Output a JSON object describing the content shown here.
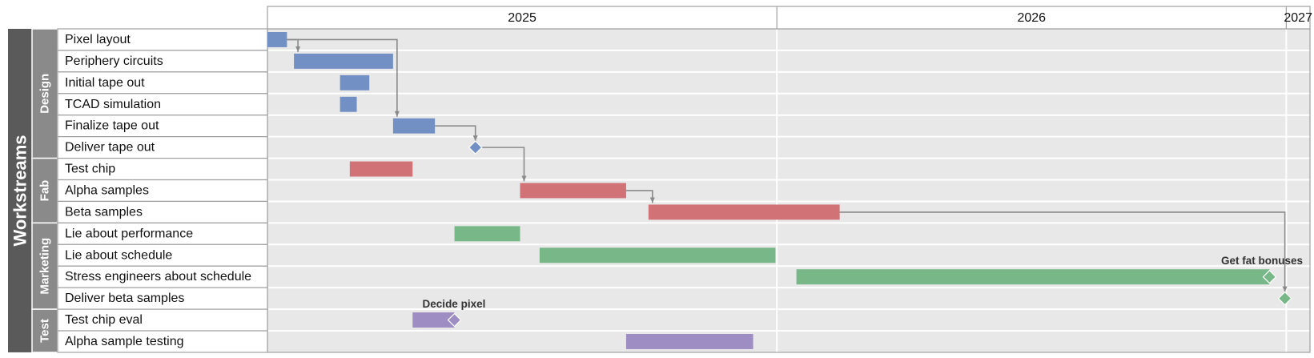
{
  "chart_data": {
    "type": "gantt",
    "outer_label": "Workstreams",
    "years": [
      "2025",
      "2026",
      "2027"
    ],
    "x_range": [
      "2025-01-01",
      "2027-01-18"
    ],
    "groups": [
      {
        "name": "Design",
        "color": "#7390c4",
        "rows": [
          0,
          5
        ]
      },
      {
        "name": "Fab",
        "color": "#d07276",
        "rows": [
          6,
          8
        ]
      },
      {
        "name": "Marketing",
        "color": "#78b888",
        "rows": [
          9,
          12
        ]
      },
      {
        "name": "Test",
        "color": "#9e8dc2",
        "rows": [
          13,
          14
        ]
      }
    ],
    "tasks": [
      {
        "name": "Pixel layout",
        "group": "Design",
        "start": "2025-01-01",
        "end": "2025-01-15"
      },
      {
        "name": "Periphery circuits",
        "group": "Design",
        "start": "2025-01-20",
        "end": "2025-04-01"
      },
      {
        "name": "Initial tape out",
        "group": "Design",
        "start": "2025-02-22",
        "end": "2025-03-15"
      },
      {
        "name": "TCAD simulation",
        "group": "Design",
        "start": "2025-02-22",
        "end": "2025-03-06"
      },
      {
        "name": "Finalize tape out",
        "group": "Design",
        "start": "2025-04-01",
        "end": "2025-05-01"
      },
      {
        "name": "Deliver tape out",
        "group": "Design",
        "milestone": "2025-05-30"
      },
      {
        "name": "Test chip",
        "group": "Fab",
        "start": "2025-03-01",
        "end": "2025-04-15"
      },
      {
        "name": "Alpha samples",
        "group": "Fab",
        "start": "2025-07-01",
        "end": "2025-09-15"
      },
      {
        "name": "Beta samples",
        "group": "Fab",
        "start": "2025-10-01",
        "end": "2026-02-15"
      },
      {
        "name": "Lie about performance",
        "group": "Marketing",
        "start": "2025-05-15",
        "end": "2025-07-01"
      },
      {
        "name": "Lie about schedule",
        "group": "Marketing",
        "start": "2025-07-15",
        "end": "2025-12-31"
      },
      {
        "name": "Stress engineers about schedule",
        "group": "Marketing",
        "start": "2026-01-15",
        "end": "2026-12-20",
        "milestone": "2026-12-20",
        "milestone_label": "Get fat bonuses"
      },
      {
        "name": "Deliver beta samples",
        "group": "Marketing",
        "milestone": "2026-12-31"
      },
      {
        "name": "Test chip eval",
        "group": "Test",
        "start": "2025-04-15",
        "end": "2025-05-15",
        "milestone": "2025-05-15",
        "milestone_label": "Decide pixel"
      },
      {
        "name": "Alpha sample testing",
        "group": "Test",
        "start": "2025-09-15",
        "end": "2025-12-15"
      }
    ],
    "dependencies": [
      {
        "from": 0,
        "to": 1
      },
      {
        "from": 0,
        "to": 4
      },
      {
        "from": 4,
        "to": 5
      },
      {
        "from": 5,
        "to": 7
      },
      {
        "from": 7,
        "to": 8
      },
      {
        "from": 8,
        "to": 12
      }
    ]
  }
}
